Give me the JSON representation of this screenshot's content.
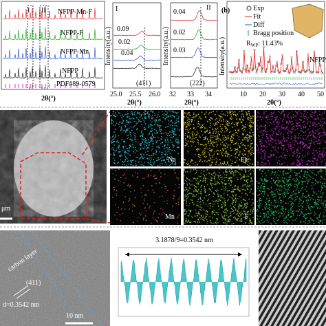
{
  "panel_a": {
    "samples": [
      "NFPP-Mn-F",
      "NFPP-F",
      "NFPP-Mn",
      "NFPP"
    ],
    "reference": "PDF#89-0579",
    "regions": [
      "I",
      "II"
    ],
    "x_label": "2θ(°)"
  },
  "zoom_i": {
    "label": "I",
    "shifts": [
      "0.09",
      "0.02",
      "0.04"
    ],
    "plane": "(411)",
    "y_label": "Intensity(a.u.)",
    "ticks": [
      "25.0",
      "25.5",
      "26.0"
    ],
    "x_label": "2θ(°)"
  },
  "zoom_ii": {
    "label": "II",
    "shifts": [
      "0.04",
      "0.02",
      "0.03"
    ],
    "plane": "(222)",
    "y_label": "Intensity(a.u.)",
    "ticks": [
      "32",
      "33",
      "34"
    ],
    "x_label": "2θ(°)"
  },
  "panel_b": {
    "label": "(b)",
    "legend": [
      "Exp",
      "Fit",
      "Diff",
      "Bragg position"
    ],
    "rwp_symbol": "R",
    "rwp_subscript": "WP",
    "rwp_value": ": 11.43%",
    "phase": "NFPP",
    "y_label": "Intensity(a.u.)",
    "ticks": [
      "10",
      "20",
      "30",
      "40",
      "50"
    ],
    "x_label": "2θ(°)"
  },
  "sem": {
    "scale": "μm"
  },
  "eds": {
    "elements": [
      "Na",
      "Fe",
      "Mn",
      "F"
    ]
  },
  "hrtem": {
    "layer": "carbon layer",
    "plane": "(411)",
    "spacing": "d=0.3542 nm",
    "scale": "10 nm"
  },
  "profile": {
    "title": "3.1878/9=0.3542 nm"
  }
}
